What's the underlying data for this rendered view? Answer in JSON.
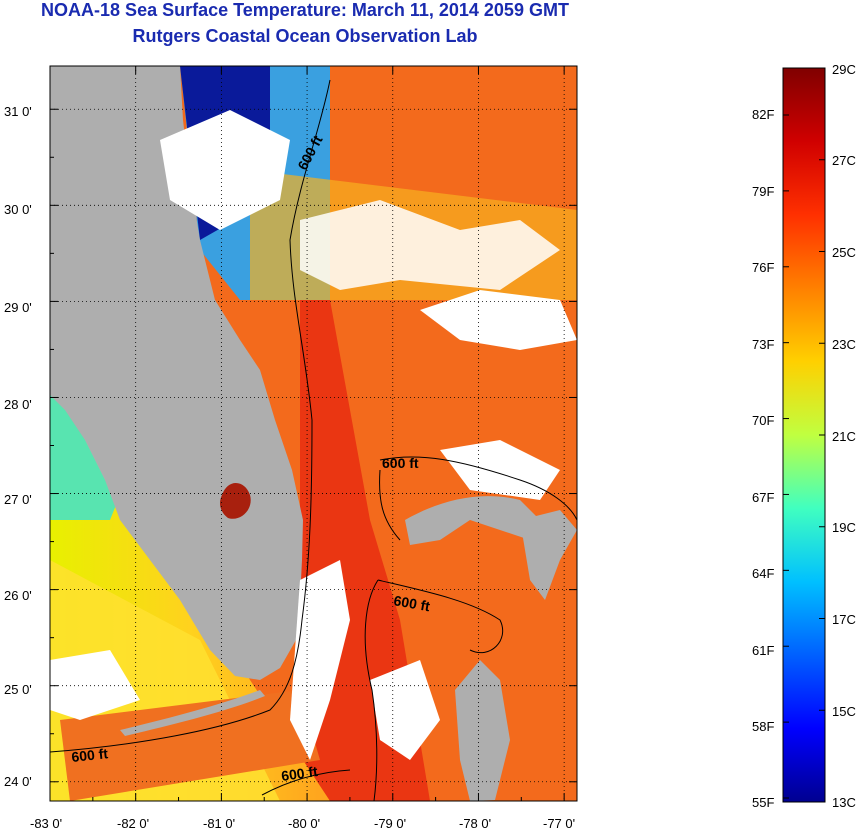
{
  "header": {
    "title": "NOAA-18 Sea Surface Temperature:  March 11, 2014 2059 GMT",
    "subtitle": "Rutgers Coastal Ocean Observation Lab"
  },
  "map": {
    "lon_range": [
      -83.0,
      -76.85
    ],
    "lat_range": [
      23.8,
      31.45
    ],
    "lat_ticks": [
      "24 0'",
      "25 0'",
      "26 0'",
      "27 0'",
      "28 0'",
      "29 0'",
      "30 0'",
      "31 0'"
    ],
    "lon_ticks": [
      "-83 0'",
      "-82 0'",
      "-81 0'",
      "-80 0'",
      "-79 0'",
      "-78 0'",
      "-77 0'"
    ],
    "contour_labels": [
      "600 ft",
      "600 ft",
      "600 ft",
      "600 ft",
      "600 ft"
    ],
    "colors": {
      "land": "#aeaeae",
      "cloud": "#ffffff",
      "gulf_stream": "#f03a12",
      "atlantic": "#f36a1c",
      "gulf_west": "#ffd21e"
    }
  },
  "colorbar": {
    "celsius_labels": [
      "29C",
      "27C",
      "25C",
      "23C",
      "21C",
      "19C",
      "17C",
      "15C",
      "13C"
    ],
    "fahrenheit_labels": [
      "82F",
      "79F",
      "76F",
      "73F",
      "70F",
      "67F",
      "64F",
      "61F",
      "58F",
      "55F"
    ],
    "stops": [
      "#000090",
      "#0000ff",
      "#0060ff",
      "#00c0ff",
      "#40ffc0",
      "#c0ff40",
      "#ffd000",
      "#ff8000",
      "#ff3000",
      "#d00000",
      "#800000"
    ]
  }
}
